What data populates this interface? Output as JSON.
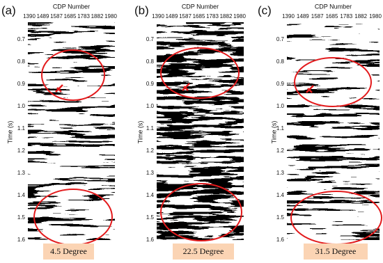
{
  "panels": [
    {
      "label": "(a)",
      "x_axis_title": "CDP Number",
      "x_ticks": [
        "1390",
        "1489",
        "1587",
        "1685",
        "1783",
        "1882",
        "1980"
      ],
      "y_axis_title": "Time (s)",
      "y_ticks": [
        "0.7",
        "0.8",
        "0.9",
        "1.0",
        "1.1",
        "1.2",
        "1.3",
        "1.4",
        "1.5",
        "1.6"
      ],
      "caption": "4.5 Degree"
    },
    {
      "label": "(b)",
      "x_axis_title": "CDP Number",
      "x_ticks": [
        "1390",
        "1489",
        "1587",
        "1685",
        "1783",
        "1882",
        "1980"
      ],
      "y_axis_title": "Time (s)",
      "y_ticks": [
        "0.7",
        "0.8",
        "0.9",
        "1.0",
        "1.1",
        "1.2",
        "1.3",
        "1.4",
        "1.5",
        "1.6"
      ],
      "caption": "22.5 Degree"
    },
    {
      "label": "(c)",
      "x_axis_title": "CDP Number",
      "x_ticks": [
        "1390",
        "1489",
        "1587",
        "1685",
        "1783",
        "1882",
        "1980"
      ],
      "y_axis_title": "Time (s)",
      "y_ticks": [
        "0.7",
        "0.8",
        "0.9",
        "1.0",
        "1.1",
        "1.2",
        "1.3",
        "1.4",
        "1.5",
        "1.6"
      ],
      "caption": "31.5 Degree"
    }
  ]
}
